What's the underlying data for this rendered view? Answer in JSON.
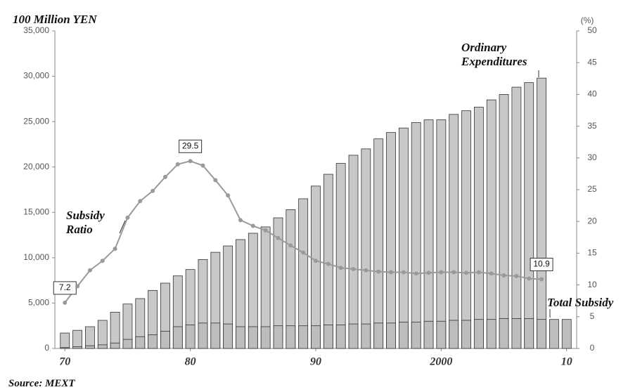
{
  "chart_data": {
    "type": "bar_line",
    "title": "100 Million YEN",
    "y2_label": "(%)",
    "source": "Source: MEXT",
    "x": [
      1970,
      1971,
      1972,
      1973,
      1974,
      1975,
      1976,
      1977,
      1978,
      1979,
      1980,
      1981,
      1982,
      1983,
      1984,
      1985,
      1986,
      1987,
      1988,
      1989,
      1990,
      1991,
      1992,
      1993,
      1994,
      1995,
      1996,
      1997,
      1998,
      1999,
      2000,
      2001,
      2002,
      2003,
      2004,
      2005,
      2006,
      2007,
      2008,
      2009,
      2010
    ],
    "xlim": [
      1969.2,
      2010.8
    ],
    "xticks": [
      {
        "value": 1970,
        "label": "70"
      },
      {
        "value": 1980,
        "label": "80"
      },
      {
        "value": 1990,
        "label": "90"
      },
      2000,
      {
        "value": 2010,
        "label": "10"
      }
    ],
    "ylim": [
      0,
      35000
    ],
    "yticks": [
      0,
      {
        "value": 5000,
        "label": "5,000"
      },
      {
        "value": 10000,
        "label": "10,000"
      },
      {
        "value": 15000,
        "label": "15,000"
      },
      {
        "value": 20000,
        "label": "20,000"
      },
      {
        "value": 25000,
        "label": "25,000"
      },
      {
        "value": 30000,
        "label": "30,000"
      },
      {
        "value": 35000,
        "label": "35,000"
      }
    ],
    "y2lim": [
      0,
      50
    ],
    "y2ticks": [
      0,
      5,
      10,
      15,
      20,
      25,
      30,
      35,
      40,
      45,
      50
    ],
    "series": [
      {
        "name": "Ordinary Expenditures",
        "type": "bar",
        "color": "#c8c8c8",
        "values": [
          1700,
          2000,
          2400,
          3100,
          4000,
          4900,
          5500,
          6400,
          7200,
          8000,
          8700,
          9800,
          10600,
          11300,
          12000,
          12700,
          13400,
          14400,
          15300,
          16500,
          17900,
          19200,
          20400,
          21300,
          22000,
          23100,
          23800,
          24300,
          24900,
          25200,
          25200,
          25800,
          26200,
          26600,
          27400,
          28000,
          28800,
          29300,
          29800,
          null,
          null
        ]
      },
      {
        "name": "Total Subsidy",
        "type": "bar",
        "color": "#bdbdbd",
        "values": [
          100,
          200,
          300,
          400,
          600,
          1000,
          1300,
          1500,
          1900,
          2400,
          2600,
          2800,
          2800,
          2700,
          2400,
          2400,
          2400,
          2500,
          2500,
          2500,
          2500,
          2600,
          2600,
          2700,
          2700,
          2800,
          2800,
          2900,
          2900,
          3000,
          3000,
          3100,
          3100,
          3200,
          3200,
          3300,
          3300,
          3300,
          3200,
          3200,
          3200
        ]
      },
      {
        "name": "Subsidy Ratio",
        "type": "line",
        "axis": "y2",
        "color": "#9a9a9a",
        "values": [
          7.2,
          9.8,
          12.3,
          13.8,
          15.7,
          20.6,
          23.2,
          24.8,
          27,
          29,
          29.5,
          28.8,
          26.5,
          24.1,
          20.2,
          19.3,
          18.6,
          17.4,
          16.2,
          15.1,
          13.8,
          13.3,
          12.7,
          12.5,
          12.3,
          12.1,
          12,
          12,
          11.8,
          11.9,
          12,
          12,
          11.9,
          12,
          11.8,
          11.5,
          11.4,
          11,
          10.9,
          null,
          null
        ],
        "value_labels": [
          "7.2",
          null,
          null,
          null,
          null,
          null,
          null,
          null,
          null,
          null,
          "29.5",
          null,
          null,
          null,
          null,
          null,
          null,
          null,
          null,
          null,
          null,
          null,
          null,
          null,
          null,
          null,
          null,
          null,
          null,
          null,
          null,
          null,
          null,
          null,
          null,
          null,
          null,
          null,
          "10.9",
          null,
          null
        ]
      }
    ]
  }
}
